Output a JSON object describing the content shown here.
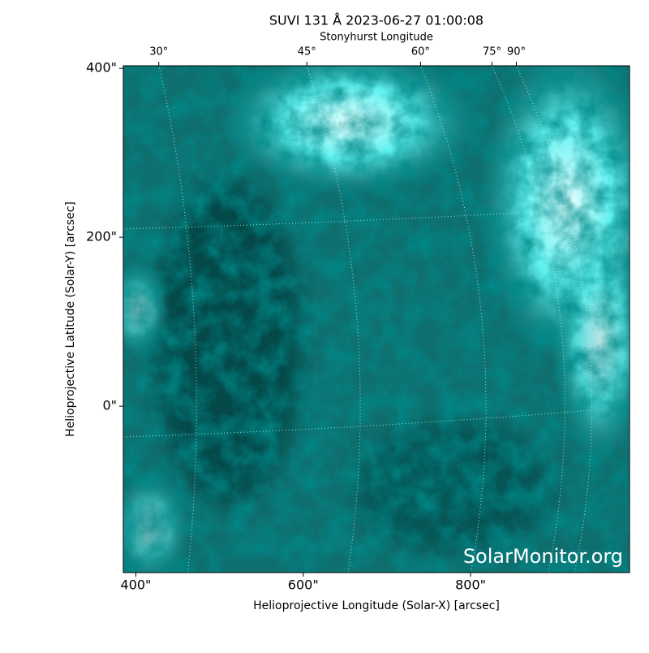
{
  "chart_data": {
    "type": "image",
    "title": "SUVI 131 Å 2023-06-27 01:00:08",
    "x_label": "Helioprojective Longitude (Solar-X) [arcsec]",
    "y_label": "Helioprojective Latitude (Solar-Y) [arcsec]",
    "x2_label": "Stonyhurst Longitude",
    "annotation": "SolarMonitor.org",
    "xlim": [
      385,
      990
    ],
    "ylim": [
      -197,
      403
    ],
    "xticks": [
      {
        "value": 400,
        "label": "400\""
      },
      {
        "value": 600,
        "label": "600\""
      },
      {
        "value": 800,
        "label": "800\""
      }
    ],
    "yticks": [
      {
        "value": 0,
        "label": "0\""
      },
      {
        "value": 200,
        "label": "200\""
      },
      {
        "value": 400,
        "label": "400\""
      }
    ],
    "x2ticks": [
      {
        "value": 30,
        "label": "30°"
      },
      {
        "value": 45,
        "label": "45°"
      },
      {
        "value": 60,
        "label": "60°"
      },
      {
        "value": 75,
        "label": "75°"
      },
      {
        "value": 90,
        "label": "90°"
      }
    ]
  }
}
